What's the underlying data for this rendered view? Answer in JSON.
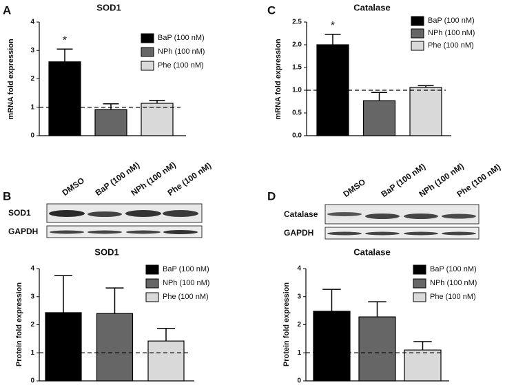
{
  "panels": [
    "A",
    "B",
    "C",
    "D"
  ],
  "blots": [
    {
      "lanes": [
        "DMSO",
        "BaP (100 nM)",
        "NPh (100 nM)",
        "Phe (100 nM)"
      ],
      "rows": [
        "SOD1",
        "GAPDH"
      ]
    },
    {
      "lanes": [
        "DMSO",
        "BaP (100 nM)",
        "NPh (100 nM)",
        "Phe (100 nM)"
      ],
      "rows": [
        "Catalase",
        "GAPDH"
      ]
    }
  ],
  "chart_data": [
    {
      "type": "bar",
      "title": "SOD1",
      "y_label": "mRNA fold expression",
      "categories": [
        null
      ],
      "series": [
        {
          "name": "BaP (100 nM)",
          "color": "#000000",
          "values": [
            2.6
          ],
          "errors": [
            0.45
          ]
        },
        {
          "name": "NPh (100 nM)",
          "color": "#666666",
          "values": [
            0.92
          ],
          "errors": [
            0.2
          ]
        },
        {
          "name": "Phe (100 nM)",
          "color": "#d9d9d9",
          "values": [
            1.14
          ],
          "errors": [
            0.1
          ]
        }
      ],
      "ylim": [
        0,
        4
      ],
      "yticks": [
        0,
        1,
        2,
        3,
        4
      ],
      "reference_line": 1,
      "legend": "upper right",
      "annotations": [
        {
          "text": "*",
          "series": "BaP (100 nM)"
        }
      ]
    },
    {
      "type": "bar",
      "title": "SOD1",
      "y_label": "Protein fold expression",
      "categories": [
        null
      ],
      "series": [
        {
          "name": "BaP (100 nM)",
          "color": "#000000",
          "values": [
            2.43
          ],
          "errors": [
            1.32
          ]
        },
        {
          "name": "NPh (100 nM)",
          "color": "#666666",
          "values": [
            2.4
          ],
          "errors": [
            0.91
          ]
        },
        {
          "name": "Phe (100 nM)",
          "color": "#d9d9d9",
          "values": [
            1.42
          ],
          "errors": [
            0.45
          ]
        }
      ],
      "ylim": [
        0,
        4
      ],
      "yticks": [
        0,
        1,
        2,
        3,
        4
      ],
      "reference_line": 1,
      "legend": "upper right"
    },
    {
      "type": "bar",
      "title": "Catalase",
      "y_label": "mRNA fold expression",
      "categories": [
        null
      ],
      "series": [
        {
          "name": "BaP (100 nM)",
          "color": "#000000",
          "values": [
            2.0
          ],
          "errors": [
            0.23
          ]
        },
        {
          "name": "NPh (100 nM)",
          "color": "#666666",
          "values": [
            0.77
          ],
          "errors": [
            0.18
          ]
        },
        {
          "name": "Phe (100 nM)",
          "color": "#d9d9d9",
          "values": [
            1.06
          ],
          "errors": [
            0.04
          ]
        }
      ],
      "ylim": [
        0,
        2.5
      ],
      "yticks": [
        {
          "value": 0,
          "label": "0.0"
        },
        0.5,
        {
          "value": 1,
          "label": "1.0"
        },
        1.5,
        {
          "value": 2,
          "label": "2.0"
        },
        2.5
      ],
      "reference_line": 1,
      "legend": "upper right",
      "annotations": [
        {
          "text": "*",
          "series": "BaP (100 nM)"
        }
      ]
    },
    {
      "type": "bar",
      "title": "Catalase",
      "y_label": "Protein fold expression",
      "categories": [
        null
      ],
      "series": [
        {
          "name": "BaP (100 nM)",
          "color": "#000000",
          "values": [
            2.48
          ],
          "errors": [
            0.78
          ]
        },
        {
          "name": "NPh (100 nM)",
          "color": "#666666",
          "values": [
            2.28
          ],
          "errors": [
            0.54
          ]
        },
        {
          "name": "Phe (100 nM)",
          "color": "#d9d9d9",
          "values": [
            1.1
          ],
          "errors": [
            0.3
          ]
        }
      ],
      "ylim": [
        0,
        4
      ],
      "yticks": [
        0,
        1,
        2,
        3,
        4
      ],
      "reference_line": 1,
      "legend": "upper right"
    }
  ]
}
